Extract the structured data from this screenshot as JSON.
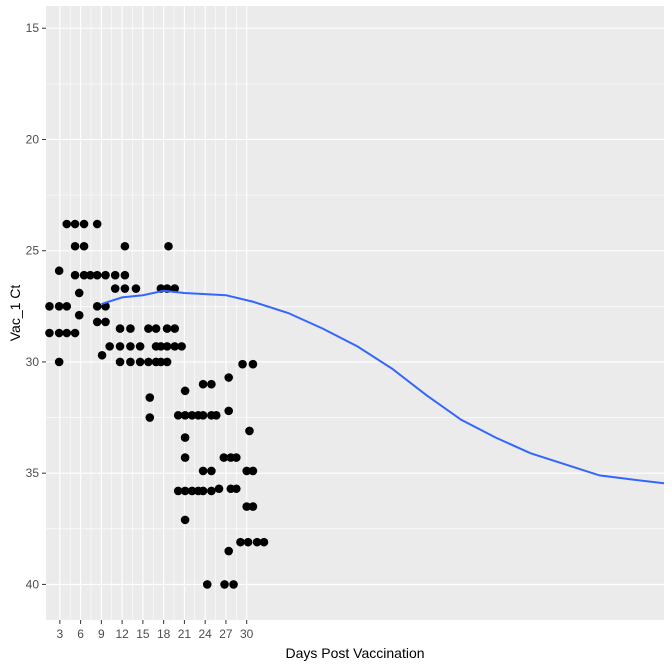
{
  "chart_data": {
    "type": "scatter",
    "xlabel": "Days Post Vaccination",
    "ylabel": "Vac_1 Ct",
    "xlim": [
      1,
      90.3
    ],
    "ylim": [
      41.6,
      14.0
    ],
    "y_reversed": true,
    "grid": true,
    "x_ticks": [
      3,
      6,
      9,
      12,
      15,
      18,
      21,
      24,
      27,
      30
    ],
    "y_ticks": [
      15,
      20,
      25,
      30,
      35,
      40
    ],
    "colors": {
      "points": "#000000",
      "smooth": "#3366FF",
      "panel": "#EBEBEB",
      "grid": "#FFFFFF"
    },
    "points": [
      [
        1.5,
        27.5
      ],
      [
        1.5,
        28.7
      ],
      [
        2.9,
        25.9
      ],
      [
        2.9,
        27.5
      ],
      [
        2.9,
        28.7
      ],
      [
        2.9,
        30.0
      ],
      [
        4.0,
        23.8
      ],
      [
        4.0,
        27.5
      ],
      [
        4.0,
        28.7
      ],
      [
        5.2,
        23.8
      ],
      [
        5.2,
        24.8
      ],
      [
        5.2,
        26.1
      ],
      [
        5.2,
        28.7
      ],
      [
        5.8,
        26.9
      ],
      [
        5.8,
        27.9
      ],
      [
        6.5,
        23.8
      ],
      [
        6.5,
        24.8
      ],
      [
        6.5,
        26.1
      ],
      [
        7.4,
        26.1
      ],
      [
        8.4,
        23.8
      ],
      [
        8.4,
        26.1
      ],
      [
        8.4,
        27.5
      ],
      [
        8.4,
        28.2
      ],
      [
        9.1,
        29.7
      ],
      [
        9.6,
        26.1
      ],
      [
        9.6,
        27.5
      ],
      [
        9.6,
        28.2
      ],
      [
        10.2,
        29.3
      ],
      [
        11.0,
        26.1
      ],
      [
        11.0,
        26.7
      ],
      [
        11.7,
        28.5
      ],
      [
        11.7,
        29.3
      ],
      [
        11.7,
        30.0
      ],
      [
        12.4,
        24.8
      ],
      [
        12.4,
        26.1
      ],
      [
        12.4,
        26.7
      ],
      [
        13.2,
        28.5
      ],
      [
        13.2,
        29.3
      ],
      [
        13.2,
        30.0
      ],
      [
        14.0,
        26.7
      ],
      [
        14.6,
        29.3
      ],
      [
        14.6,
        30.0
      ],
      [
        15.8,
        28.5
      ],
      [
        15.8,
        30.0
      ],
      [
        16.0,
        31.6
      ],
      [
        16.0,
        32.5
      ],
      [
        16.9,
        28.5
      ],
      [
        16.9,
        29.3
      ],
      [
        16.9,
        30.0
      ],
      [
        17.6,
        26.7
      ],
      [
        17.6,
        29.3
      ],
      [
        17.6,
        30.0
      ],
      [
        18.5,
        26.7
      ],
      [
        18.5,
        28.5
      ],
      [
        18.5,
        29.3
      ],
      [
        18.5,
        30.0
      ],
      [
        18.7,
        24.8
      ],
      [
        19.6,
        26.7
      ],
      [
        19.6,
        28.5
      ],
      [
        19.6,
        29.3
      ],
      [
        20.6,
        29.3
      ],
      [
        20.1,
        32.4
      ],
      [
        20.1,
        35.8
      ],
      [
        21.1,
        31.3
      ],
      [
        21.1,
        32.4
      ],
      [
        21.1,
        33.4
      ],
      [
        21.1,
        34.3
      ],
      [
        21.1,
        35.8
      ],
      [
        21.1,
        37.1
      ],
      [
        22.1,
        32.4
      ],
      [
        22.1,
        35.8
      ],
      [
        23.0,
        32.4
      ],
      [
        23.0,
        35.8
      ],
      [
        23.7,
        31.0
      ],
      [
        23.7,
        32.4
      ],
      [
        23.7,
        34.9
      ],
      [
        23.7,
        35.8
      ],
      [
        24.3,
        40.0
      ],
      [
        24.9,
        31.0
      ],
      [
        24.9,
        32.4
      ],
      [
        24.9,
        34.9
      ],
      [
        24.9,
        35.8
      ],
      [
        25.6,
        32.4
      ],
      [
        26.0,
        35.7
      ],
      [
        26.7,
        34.3
      ],
      [
        26.8,
        40.0
      ],
      [
        27.4,
        30.7
      ],
      [
        27.4,
        32.2
      ],
      [
        27.4,
        38.5
      ],
      [
        27.7,
        34.3
      ],
      [
        27.7,
        35.7
      ],
      [
        28.1,
        40.0
      ],
      [
        28.5,
        34.3
      ],
      [
        28.5,
        35.7
      ],
      [
        29.1,
        38.1
      ],
      [
        29.4,
        30.1
      ],
      [
        30.0,
        34.9
      ],
      [
        30.0,
        36.5
      ],
      [
        30.2,
        38.1
      ],
      [
        30.4,
        33.1
      ],
      [
        30.9,
        30.1
      ],
      [
        30.9,
        34.9
      ],
      [
        30.9,
        36.5
      ],
      [
        31.5,
        38.1
      ],
      [
        32.5,
        38.1
      ]
    ],
    "smooth": [
      [
        9,
        27.4
      ],
      [
        12,
        27.1
      ],
      [
        15,
        27.0
      ],
      [
        18,
        26.8
      ],
      [
        21,
        26.9
      ],
      [
        24,
        26.95
      ],
      [
        27,
        27.0
      ],
      [
        31,
        27.3
      ],
      [
        36,
        27.8
      ],
      [
        41,
        28.5
      ],
      [
        46,
        29.3
      ],
      [
        51,
        30.3
      ],
      [
        56,
        31.5
      ],
      [
        61,
        32.6
      ],
      [
        66,
        33.4
      ],
      [
        71,
        34.1
      ],
      [
        76,
        34.6
      ],
      [
        81,
        35.1
      ],
      [
        86,
        35.3
      ],
      [
        90.3,
        35.45
      ]
    ]
  }
}
